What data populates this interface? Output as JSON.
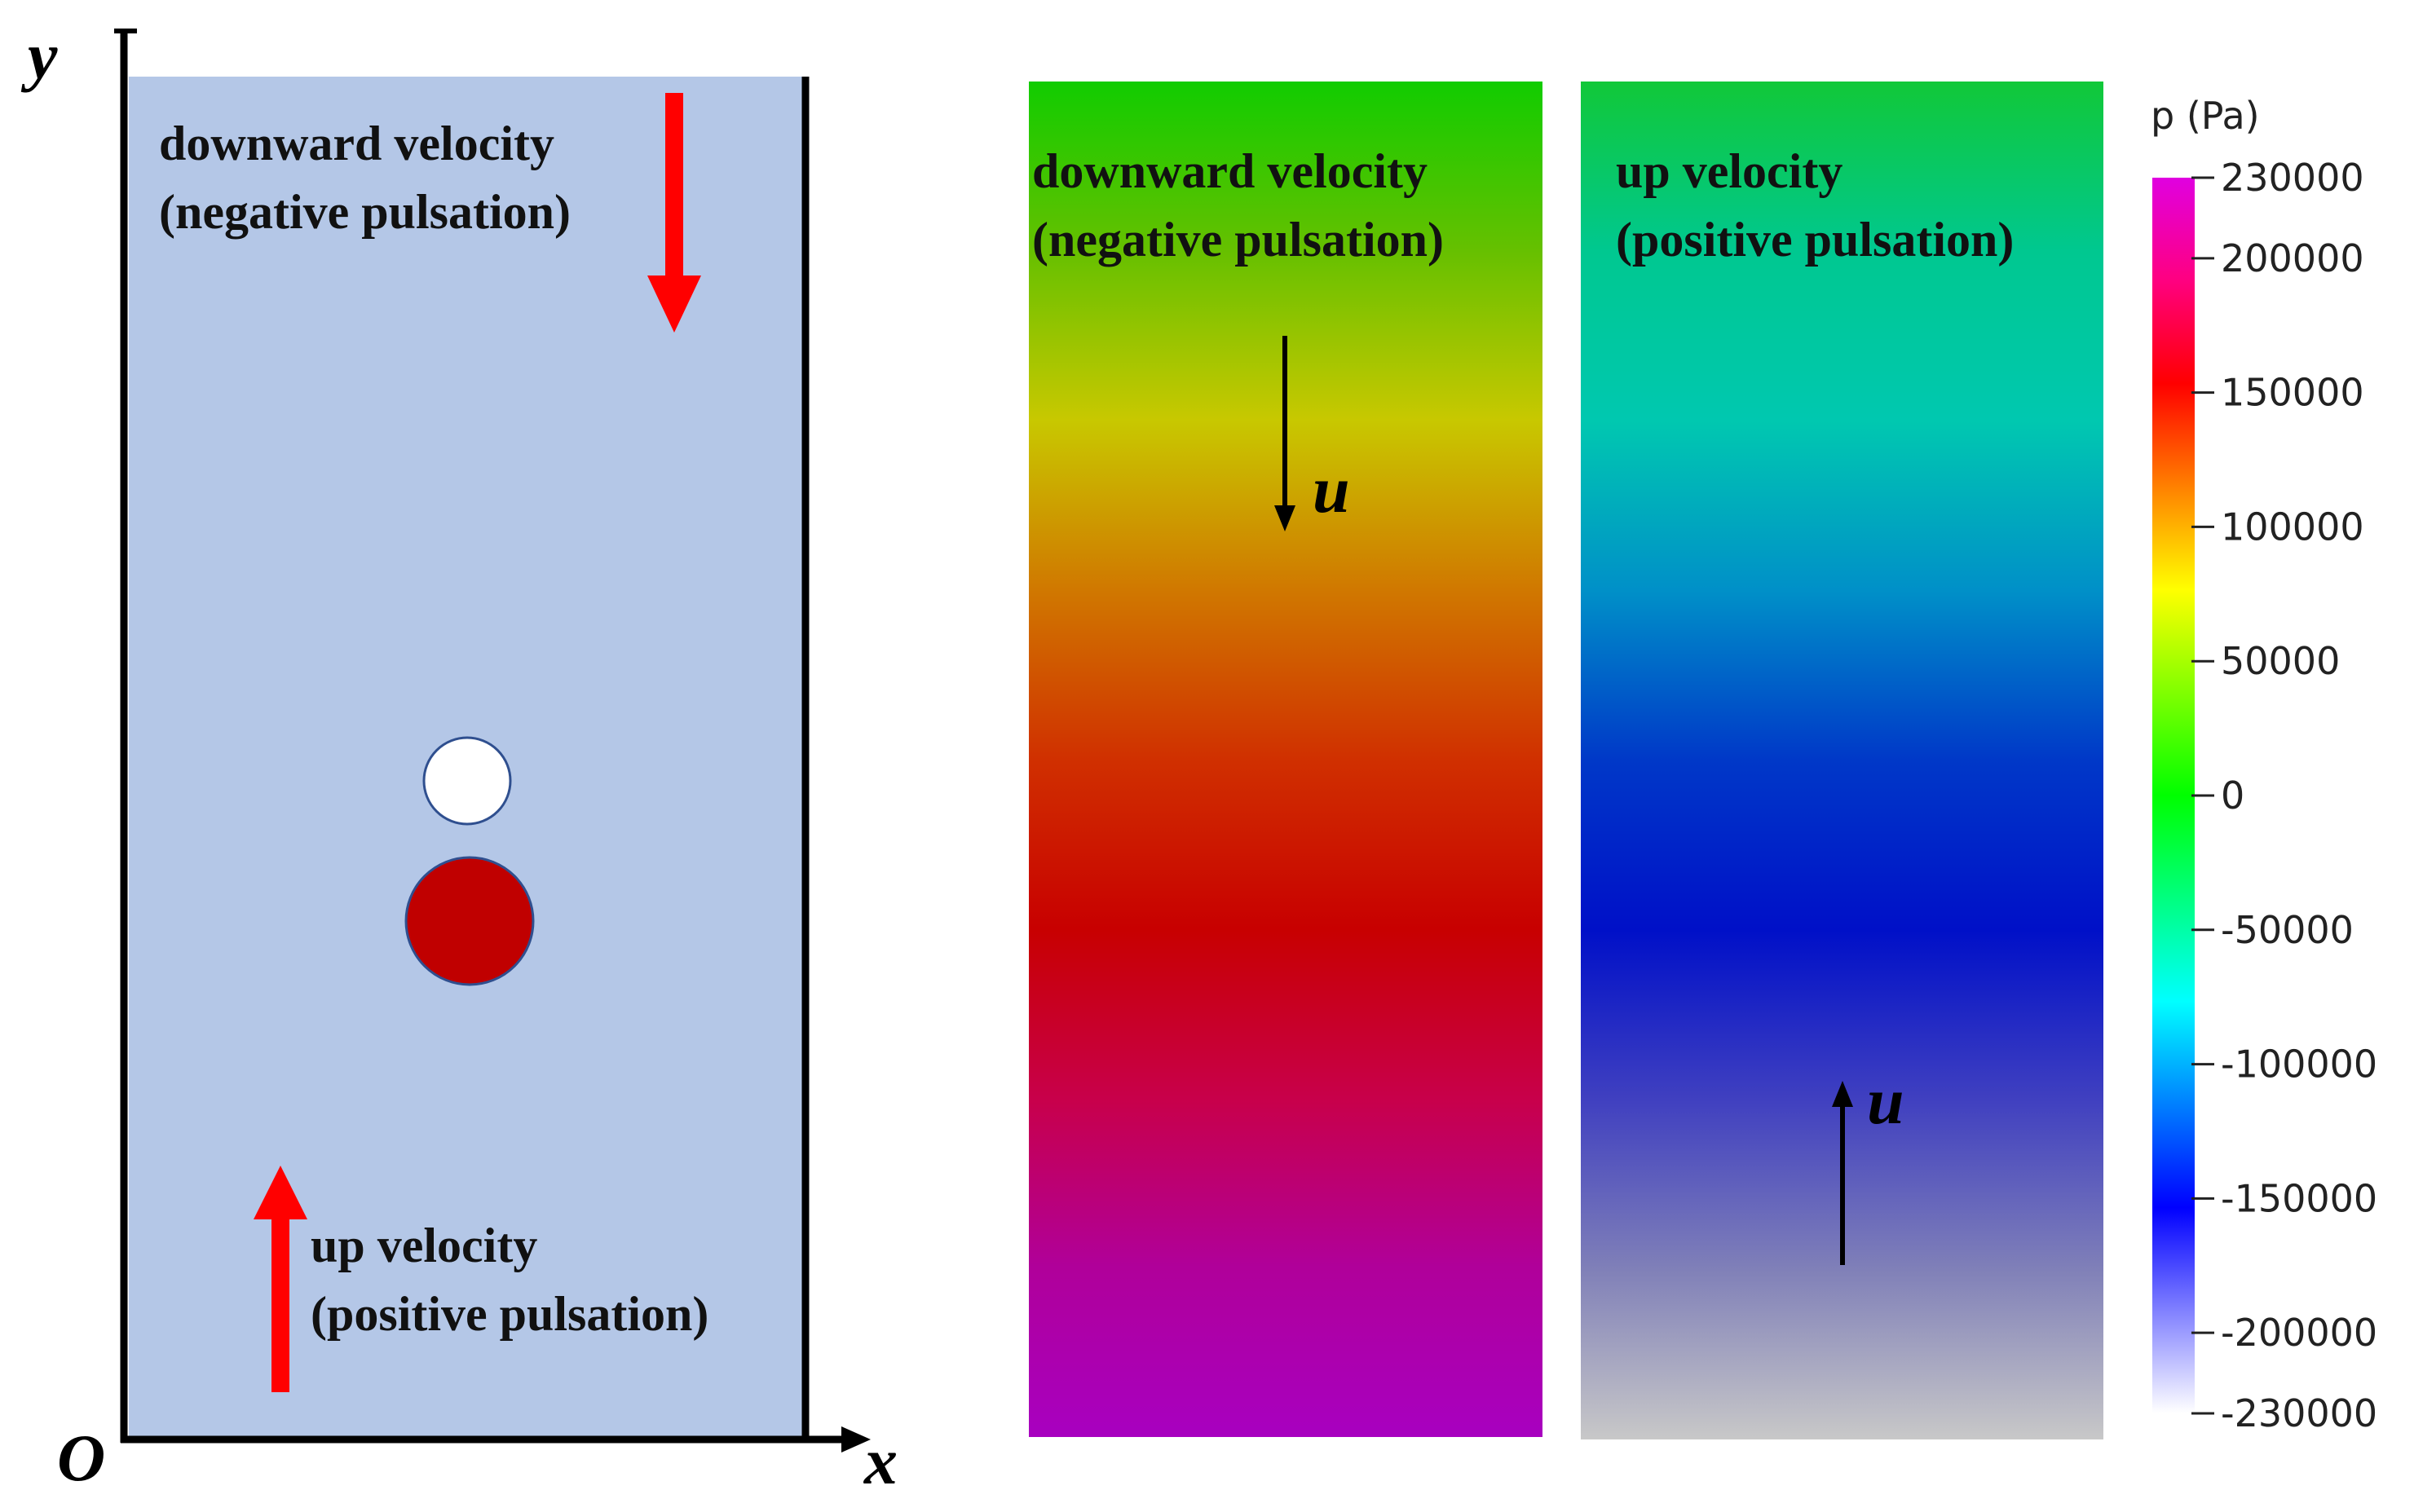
{
  "left_panel": {
    "y_label": "y",
    "x_label": "x",
    "origin_label": "O",
    "top_text": [
      "downward velocity",
      "(negative pulsation)"
    ],
    "bottom_text": [
      "up velocity",
      "(positive pulsation)"
    ],
    "domain_color": "#b4c7e7",
    "arrow_color": "#ff0000",
    "bubble_fill": "#ffffff",
    "particle_fill": "#c00000",
    "outline_color": "#2f4f8f"
  },
  "middle_panel": {
    "text": [
      "downward velocity",
      "(negative pulsation)"
    ],
    "velocity_label": "u",
    "gradient": [
      "#11cc00",
      "#66c000",
      "#c8c800",
      "#d07800",
      "#d03000",
      "#c80000",
      "#c8004a",
      "#b0009a",
      "#a800c0"
    ]
  },
  "right_panel": {
    "text": [
      "up velocity",
      "(positive pulsation)"
    ],
    "velocity_label": "u",
    "gradient": [
      "#11c838",
      "#00c890",
      "#00c8b0",
      "#0090c8",
      "#0038c8",
      "#0010c8",
      "#4040c0",
      "#8080b8",
      "#c8c8c8"
    ]
  },
  "colorbar": {
    "title": "p (Pa)",
    "ticks": [
      "230000",
      "200000",
      "150000",
      "100000",
      "50000",
      "0",
      "-50000",
      "-100000",
      "-150000",
      "-200000",
      "-230000"
    ],
    "tick_values": [
      230000,
      200000,
      150000,
      100000,
      50000,
      0,
      -50000,
      -100000,
      -150000,
      -200000,
      -230000
    ],
    "gradient": [
      "#e000e0",
      "#ff0080",
      "#ff0000",
      "#ff8000",
      "#ffff00",
      "#80ff00",
      "#00ff00",
      "#00ff80",
      "#00ffff",
      "#0080ff",
      "#0000ff",
      "#8080ff",
      "#ffffff"
    ]
  }
}
